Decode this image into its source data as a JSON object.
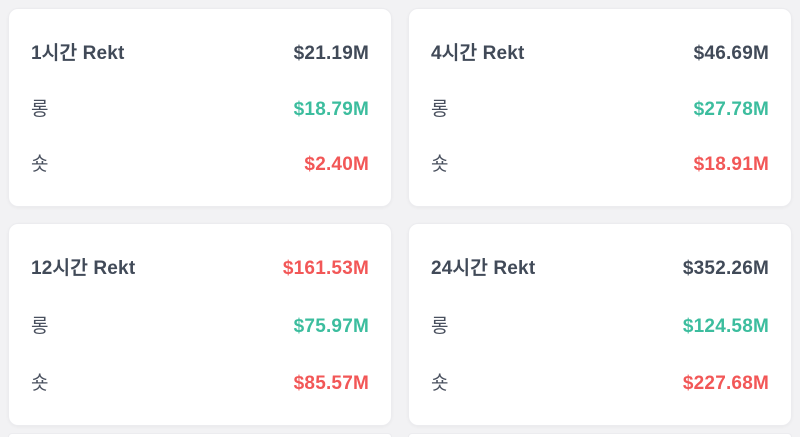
{
  "theme": {
    "page_background": "#f2f2f4",
    "card_background": "#ffffff",
    "card_border": "#ececef",
    "neutral_text": "#414a58",
    "label_text": "#49505e",
    "long_color": "#3cbd9e",
    "short_color": "#f25757"
  },
  "cards": [
    {
      "title": "1시간 Rekt",
      "total": {
        "text": "$21.19M",
        "tone": "neutral"
      },
      "rows": [
        {
          "label": "롱",
          "value": "$18.79M",
          "tone": "long"
        },
        {
          "label": "숏",
          "value": "$2.40M",
          "tone": "short"
        }
      ]
    },
    {
      "title": "4시간 Rekt",
      "total": {
        "text": "$46.69M",
        "tone": "neutral"
      },
      "rows": [
        {
          "label": "롱",
          "value": "$27.78M",
          "tone": "long"
        },
        {
          "label": "숏",
          "value": "$18.91M",
          "tone": "short"
        }
      ]
    },
    {
      "title": "12시간 Rekt",
      "total": {
        "text": "$161.53M",
        "tone": "short"
      },
      "rows": [
        {
          "label": "롱",
          "value": "$75.97M",
          "tone": "long"
        },
        {
          "label": "숏",
          "value": "$85.57M",
          "tone": "short"
        }
      ]
    },
    {
      "title": "24시간 Rekt",
      "total": {
        "text": "$352.26M",
        "tone": "neutral"
      },
      "rows": [
        {
          "label": "롱",
          "value": "$124.58M",
          "tone": "long"
        },
        {
          "label": "숏",
          "value": "$227.68M",
          "tone": "short"
        }
      ]
    }
  ]
}
